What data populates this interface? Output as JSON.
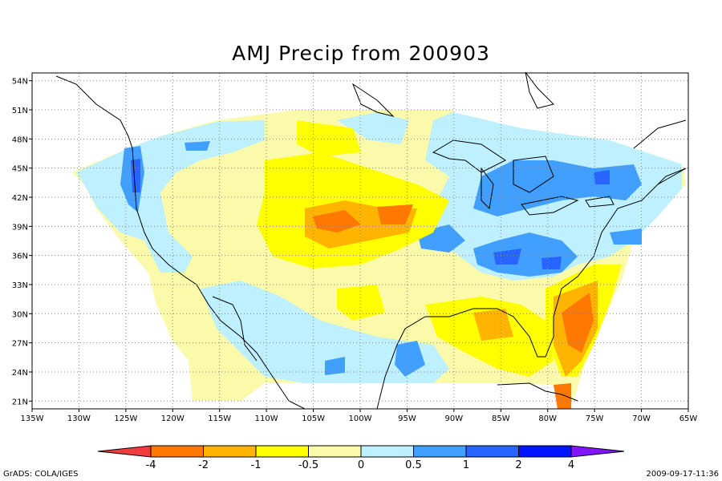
{
  "title": "AMJ Precip from 200903",
  "map": {
    "lon_range": [
      -135,
      -65
    ],
    "lat_range": [
      20.2,
      54.8
    ],
    "lat_labels": [
      {
        "v": 54,
        "t": "54N"
      },
      {
        "v": 51,
        "t": "51N"
      },
      {
        "v": 48,
        "t": "48N"
      },
      {
        "v": 45,
        "t": "45N"
      },
      {
        "v": 42,
        "t": "42N"
      },
      {
        "v": 39,
        "t": "39N"
      },
      {
        "v": 36,
        "t": "36N"
      },
      {
        "v": 33,
        "t": "33N"
      },
      {
        "v": 30,
        "t": "30N"
      },
      {
        "v": 27,
        "t": "27N"
      },
      {
        "v": 24,
        "t": "24N"
      },
      {
        "v": 21,
        "t": "21N"
      }
    ],
    "lon_labels": [
      {
        "v": -135,
        "t": "135W"
      },
      {
        "v": -130,
        "t": "130W"
      },
      {
        "v": -125,
        "t": "125W"
      },
      {
        "v": -120,
        "t": "120W"
      },
      {
        "v": -115,
        "t": "115W"
      },
      {
        "v": -110,
        "t": "110W"
      },
      {
        "v": -105,
        "t": "105W"
      },
      {
        "v": -100,
        "t": "100W"
      },
      {
        "v": -95,
        "t": "95W"
      },
      {
        "v": -90,
        "t": "90W"
      },
      {
        "v": -85,
        "t": "85W"
      },
      {
        "v": -80,
        "t": "80W"
      },
      {
        "v": -75,
        "t": "75W"
      },
      {
        "v": -70,
        "t": "70W"
      },
      {
        "v": -65,
        "t": "65W"
      }
    ]
  },
  "colorbar": {
    "labels": [
      "-4",
      "-2",
      "-1",
      "-0.5",
      "0",
      "0.5",
      "1",
      "2",
      "4"
    ],
    "colors": [
      "#f03c3c",
      "#ff7800",
      "#ffb400",
      "#ffff00",
      "#fafaaa",
      "#bef0ff",
      "#41a0ff",
      "#2864ff",
      "#0014ff",
      "#8214ff"
    ]
  },
  "footer": {
    "left": "GrADS: COLA/IGES",
    "right": "2009-09-17-11:36"
  }
}
